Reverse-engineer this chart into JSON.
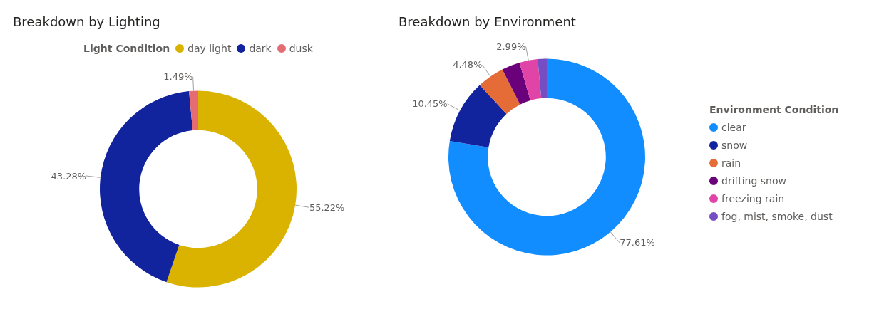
{
  "chart_data": [
    {
      "type": "donut",
      "title": "Breakdown by Lighting",
      "legend_title": "Light Condition",
      "legend": "top",
      "categories": [
        "day light",
        "dark",
        "dusk"
      ],
      "values": [
        55.22,
        43.28,
        1.49
      ],
      "colors": [
        "#d9b300",
        "#12239e",
        "#e66c74"
      ],
      "value_labels": [
        "55.22%",
        "43.28%",
        "1.49%"
      ]
    },
    {
      "type": "donut",
      "title": "Breakdown by Environment",
      "legend_title": "Environment Condition",
      "legend": "right",
      "categories": [
        "clear",
        "snow",
        "rain",
        "drifting snow",
        "freezing rain",
        "fog, mist, smoke, dust"
      ],
      "values": [
        77.61,
        10.45,
        4.48,
        2.99,
        2.99,
        1.49
      ],
      "colors": [
        "#118dff",
        "#12239e",
        "#e66c37",
        "#6b007b",
        "#e044a7",
        "#744ec2"
      ],
      "value_labels": [
        "77.61%",
        "10.45%",
        "4.48%",
        null,
        "2.99%",
        null
      ]
    }
  ]
}
